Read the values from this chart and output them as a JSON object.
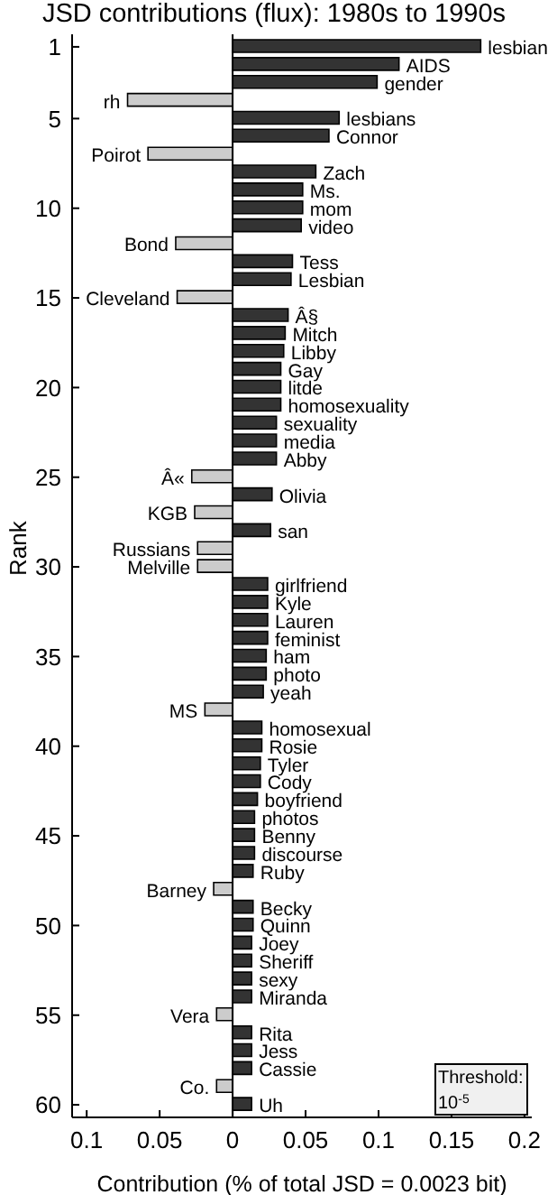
{
  "chart_data": {
    "type": "bar",
    "orientation": "horizontal",
    "title": "JSD contributions (flux): 1980s to 1990s",
    "xlabel": "Contribution (% of total JSD = 0.0023 bit)",
    "ylabel": "Rank",
    "x": [
      1,
      2,
      3,
      4,
      5,
      6,
      7,
      8,
      9,
      10,
      11,
      12,
      13,
      14,
      15,
      16,
      17,
      18,
      19,
      20,
      21,
      22,
      23,
      24,
      25,
      26,
      27,
      28,
      29,
      30,
      31,
      32,
      33,
      34,
      35,
      36,
      37,
      38,
      39,
      40,
      41,
      42,
      43,
      44,
      45,
      46,
      47,
      48,
      49,
      50,
      51,
      52,
      53,
      54,
      55,
      56,
      57,
      58,
      59,
      60
    ],
    "values": [
      0.17,
      0.114,
      0.099,
      -0.072,
      0.073,
      0.066,
      -0.058,
      0.057,
      0.048,
      0.048,
      0.047,
      -0.039,
      0.041,
      0.04,
      -0.038,
      0.038,
      0.036,
      0.035,
      0.033,
      0.033,
      0.033,
      0.03,
      0.03,
      0.03,
      -0.028,
      0.027,
      -0.026,
      0.026,
      -0.024,
      -0.024,
      0.024,
      0.024,
      0.024,
      0.024,
      0.023,
      0.023,
      0.021,
      -0.019,
      0.02,
      0.02,
      0.019,
      0.019,
      0.017,
      0.015,
      0.015,
      0.015,
      0.014,
      -0.013,
      0.014,
      0.014,
      0.013,
      0.013,
      0.013,
      0.013,
      -0.011,
      0.013,
      0.013,
      0.013,
      -0.011,
      0.013
    ],
    "colors": [
      "#333333",
      "#333333",
      "#333333",
      "#cccccc",
      "#333333",
      "#333333",
      "#cccccc",
      "#333333",
      "#333333",
      "#333333",
      "#333333",
      "#cccccc",
      "#333333",
      "#333333",
      "#cccccc",
      "#333333",
      "#333333",
      "#333333",
      "#333333",
      "#333333",
      "#333333",
      "#333333",
      "#333333",
      "#333333",
      "#cccccc",
      "#333333",
      "#cccccc",
      "#333333",
      "#cccccc",
      "#cccccc",
      "#333333",
      "#333333",
      "#333333",
      "#333333",
      "#333333",
      "#333333",
      "#333333",
      "#cccccc",
      "#333333",
      "#333333",
      "#333333",
      "#333333",
      "#333333",
      "#333333",
      "#333333",
      "#333333",
      "#333333",
      "#cccccc",
      "#333333",
      "#333333",
      "#333333",
      "#333333",
      "#333333",
      "#333333",
      "#cccccc",
      "#333333",
      "#333333",
      "#333333",
      "#cccccc",
      "#333333"
    ],
    "xlim": [
      -0.11,
      0.205
    ],
    "xticks": [
      {
        "value": -0.1,
        "label": "0.1"
      },
      {
        "value": -0.05,
        "label": "0.05"
      },
      0,
      0.05,
      0.1,
      0.15,
      0.2
    ],
    "ylim": [
      60.7,
      0.3
    ],
    "yticks": [
      1,
      5,
      10,
      15,
      20,
      25,
      30,
      35,
      40,
      45,
      50,
      55,
      60
    ],
    "ref_lines": [
      {
        "axis": "x",
        "value": 0,
        "color": "#000000"
      }
    ],
    "annotations": [
      {
        "text": "lesbian",
        "x": 0.17,
        "y": 1
      },
      {
        "text": "AIDS",
        "x": 0.114,
        "y": 2
      },
      {
        "text": "gender",
        "x": 0.099,
        "y": 3
      },
      {
        "text": "rh",
        "x": -0.072,
        "y": 4
      },
      {
        "text": "lesbians",
        "x": 0.073,
        "y": 5
      },
      {
        "text": "Connor",
        "x": 0.066,
        "y": 6
      },
      {
        "text": "Poirot",
        "x": -0.058,
        "y": 7
      },
      {
        "text": "Zach",
        "x": 0.057,
        "y": 8
      },
      {
        "text": "Ms.",
        "x": 0.048,
        "y": 9
      },
      {
        "text": "mom",
        "x": 0.048,
        "y": 10
      },
      {
        "text": "video",
        "x": 0.047,
        "y": 11
      },
      {
        "text": "Bond",
        "x": -0.039,
        "y": 12
      },
      {
        "text": "Tess",
        "x": 0.041,
        "y": 13
      },
      {
        "text": "Lesbian",
        "x": 0.04,
        "y": 14
      },
      {
        "text": "Cleveland",
        "x": -0.038,
        "y": 15
      },
      {
        "text": "Â§",
        "x": 0.038,
        "y": 16
      },
      {
        "text": "Mitch",
        "x": 0.036,
        "y": 17
      },
      {
        "text": "Libby",
        "x": 0.035,
        "y": 18
      },
      {
        "text": "Gay",
        "x": 0.033,
        "y": 19
      },
      {
        "text": "litde",
        "x": 0.033,
        "y": 20
      },
      {
        "text": "homosexuality",
        "x": 0.033,
        "y": 21
      },
      {
        "text": "sexuality",
        "x": 0.03,
        "y": 22
      },
      {
        "text": "media",
        "x": 0.03,
        "y": 23
      },
      {
        "text": "Abby",
        "x": 0.03,
        "y": 24
      },
      {
        "text": "Â«",
        "x": -0.028,
        "y": 25
      },
      {
        "text": "Olivia",
        "x": 0.027,
        "y": 26
      },
      {
        "text": "KGB",
        "x": -0.026,
        "y": 27
      },
      {
        "text": "san",
        "x": 0.026,
        "y": 28
      },
      {
        "text": "Russians",
        "x": -0.024,
        "y": 29
      },
      {
        "text": "Melville",
        "x": -0.024,
        "y": 30
      },
      {
        "text": "girlfriend",
        "x": 0.024,
        "y": 31
      },
      {
        "text": "Kyle",
        "x": 0.024,
        "y": 32
      },
      {
        "text": "Lauren",
        "x": 0.024,
        "y": 33
      },
      {
        "text": "feminist",
        "x": 0.024,
        "y": 34
      },
      {
        "text": "ham",
        "x": 0.023,
        "y": 35
      },
      {
        "text": "photo",
        "x": 0.023,
        "y": 36
      },
      {
        "text": "yeah",
        "x": 0.021,
        "y": 37
      },
      {
        "text": "MS",
        "x": -0.019,
        "y": 38
      },
      {
        "text": "homosexual",
        "x": 0.02,
        "y": 39
      },
      {
        "text": "Rosie",
        "x": 0.02,
        "y": 40
      },
      {
        "text": "Tyler",
        "x": 0.019,
        "y": 41
      },
      {
        "text": "Cody",
        "x": 0.019,
        "y": 42
      },
      {
        "text": "boyfriend",
        "x": 0.017,
        "y": 43
      },
      {
        "text": "photos",
        "x": 0.015,
        "y": 44
      },
      {
        "text": "Benny",
        "x": 0.015,
        "y": 45
      },
      {
        "text": "discourse",
        "x": 0.015,
        "y": 46
      },
      {
        "text": "Ruby",
        "x": 0.014,
        "y": 47
      },
      {
        "text": "Barney",
        "x": -0.013,
        "y": 48
      },
      {
        "text": "Becky",
        "x": 0.014,
        "y": 49
      },
      {
        "text": "Quinn",
        "x": 0.014,
        "y": 50
      },
      {
        "text": "Joey",
        "x": 0.013,
        "y": 51
      },
      {
        "text": "Sheriff",
        "x": 0.013,
        "y": 52
      },
      {
        "text": "sexy",
        "x": 0.013,
        "y": 53
      },
      {
        "text": "Miranda",
        "x": 0.013,
        "y": 54
      },
      {
        "text": "Vera",
        "x": -0.011,
        "y": 55
      },
      {
        "text": "Rita",
        "x": 0.013,
        "y": 56
      },
      {
        "text": "Jess",
        "x": 0.013,
        "y": 57
      },
      {
        "text": "Cassie",
        "x": 0.013,
        "y": 58
      },
      {
        "text": "Co.",
        "x": -0.011,
        "y": 59
      },
      {
        "text": "Uh",
        "x": 0.013,
        "y": 60
      },
      "Threshold: 10$^{-5}$"
    ],
    "grid": false,
    "legend": false
  }
}
